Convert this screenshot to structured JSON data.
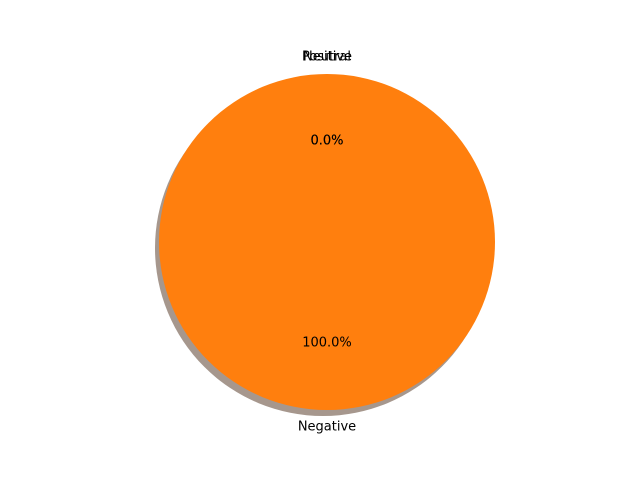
{
  "chart_data": {
    "type": "pie",
    "title": "",
    "labels": [
      "Neutral",
      "Positive",
      "Negative"
    ],
    "values": [
      0.0,
      0.0,
      100.0
    ],
    "percent_labels": [
      "0.0%",
      "0.0%",
      "100.0%"
    ],
    "colors": [
      "#1f77b4",
      "#2ca02c",
      "#ff7f0e"
    ],
    "shadow": true,
    "shadow_color": "#a6978d",
    "legend": "none"
  }
}
